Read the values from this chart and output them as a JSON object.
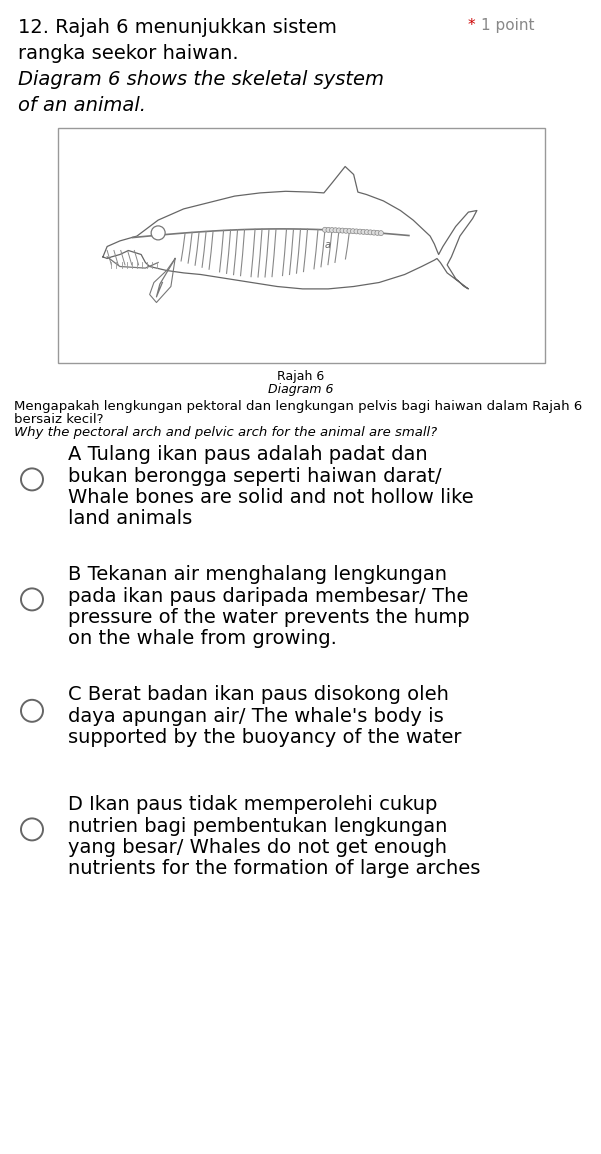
{
  "bg_color": "#ffffff",
  "text_color": "#000000",
  "grey_color": "#555555",
  "title_line1": "12. Rajah 6 menunjukkan sistem",
  "title_line2": "rangka seekor haiwan.",
  "title_line3_italic": "Diagram 6 shows the skeletal system",
  "title_line4_italic": "of an animal.",
  "star": "* ",
  "points": "1 point",
  "star_color": "#cc0000",
  "points_color": "#888888",
  "diagram_label_malay": "Rajah 6",
  "diagram_label_english": "Diagram 6",
  "question_line1": "Mengapakah lengkungan pektoral dan lengkungan pelvis bagi haiwan dalam Rajah 6",
  "question_line2": "bersaiz kecil?",
  "question_line3_italic": "Why the pectoral arch and pelvic arch for the animal are small?",
  "option_A_lines": [
    "A Tulang ikan paus adalah padat dan",
    "bukan berongga seperti haiwan darat/",
    "Whale bones are solid and not hollow like",
    "land animals"
  ],
  "option_B_lines": [
    "B Tekanan air menghalang lengkungan",
    "pada ikan paus daripada membesar/ The",
    "pressure of the water prevents the hump",
    "on the whale from growing."
  ],
  "option_C_lines": [
    "C Berat badan ikan paus disokong oleh",
    "daya apungan air/ The whale's body is",
    "supported by the buoyancy of the water"
  ],
  "option_D_lines": [
    "D Ikan paus tidak memperolehi cukup",
    "nutrien bagi pembentukan lengkungan",
    "yang besar/ Whales do not get enough",
    "nutrients for the formation of large arches"
  ],
  "title_fontsize": 14,
  "option_fontsize": 14,
  "question_fontsize": 9.5,
  "points_fontsize": 11,
  "label_fontsize": 9
}
